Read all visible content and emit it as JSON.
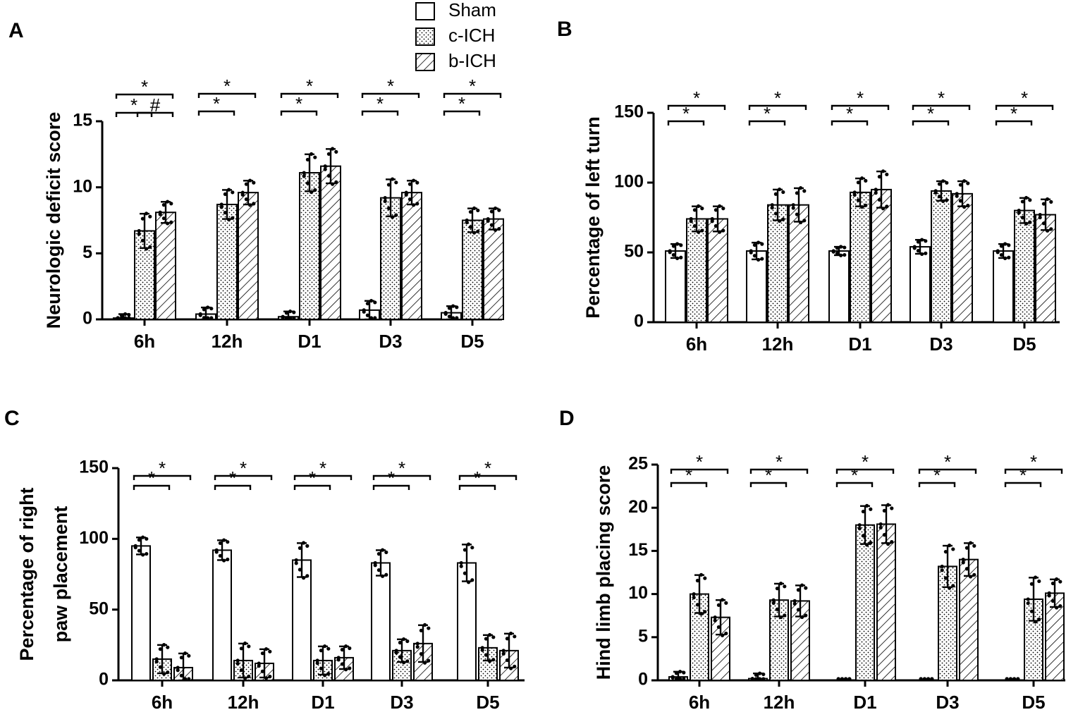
{
  "legend": [
    {
      "name": "Sham",
      "pattern": "white"
    },
    {
      "name": "c-ICH",
      "pattern": "dots"
    },
    {
      "name": "b-ICH",
      "pattern": "hatch"
    }
  ],
  "chart_data": [
    {
      "type": "bar",
      "panel": "A",
      "ylabel": "Neurologic deficit score",
      "ylabel_lines": [
        "Neurologic deficit score"
      ],
      "ylim": [
        0,
        15
      ],
      "yticks": [
        0,
        5,
        10,
        15
      ],
      "ytick_labels": [
        "0",
        "5",
        "10",
        "15"
      ],
      "categories": [
        "6h",
        "12h",
        "D1",
        "D3",
        "D5"
      ],
      "series": [
        {
          "name": "Sham",
          "values": [
            0.1,
            0.4,
            0.2,
            0.7,
            0.5
          ],
          "errors": [
            0.3,
            0.5,
            0.4,
            0.7,
            0.5
          ]
        },
        {
          "name": "c-ICH",
          "values": [
            6.7,
            8.7,
            11.1,
            9.2,
            7.5
          ],
          "errors": [
            1.3,
            1.1,
            1.4,
            1.4,
            0.9
          ]
        },
        {
          "name": "b-ICH",
          "values": [
            8.1,
            9.6,
            11.6,
            9.6,
            7.6
          ],
          "errors": [
            0.8,
            0.9,
            1.3,
            0.9,
            0.8
          ]
        }
      ],
      "significance": [
        {
          "category": 0,
          "from": 0,
          "to": 1,
          "label": "*"
        },
        {
          "category": 0,
          "from": 1,
          "to": 2,
          "label": "#"
        },
        {
          "category": 0,
          "from": 0,
          "to": 2,
          "label": "*"
        },
        {
          "category": 1,
          "from": 0,
          "to": 1,
          "label": "*"
        },
        {
          "category": 1,
          "from": 0,
          "to": 2,
          "label": "*"
        },
        {
          "category": 2,
          "from": 0,
          "to": 1,
          "label": "*"
        },
        {
          "category": 2,
          "from": 0,
          "to": 2,
          "label": "*"
        },
        {
          "category": 3,
          "from": 0,
          "to": 1,
          "label": "*"
        },
        {
          "category": 3,
          "from": 0,
          "to": 2,
          "label": "*"
        },
        {
          "category": 4,
          "from": 0,
          "to": 1,
          "label": "*"
        },
        {
          "category": 4,
          "from": 0,
          "to": 2,
          "label": "*"
        }
      ]
    },
    {
      "type": "bar",
      "panel": "B",
      "ylabel": "Percentage of left turn",
      "ylabel_lines": [
        "Percentage of left turn"
      ],
      "ylim": [
        0,
        150
      ],
      "yticks": [
        0,
        50,
        100,
        150
      ],
      "ytick_labels": [
        "0",
        "50",
        "100",
        "150"
      ],
      "categories": [
        "6h",
        "12h",
        "D1",
        "D3",
        "D5"
      ],
      "series": [
        {
          "name": "Sham",
          "values": [
            51,
            51,
            51,
            54,
            51
          ],
          "errors": [
            5,
            6,
            3,
            5,
            5
          ]
        },
        {
          "name": "c-ICH",
          "values": [
            74,
            84,
            93,
            94,
            80
          ],
          "errors": [
            9,
            11,
            10,
            7,
            9
          ]
        },
        {
          "name": "b-ICH",
          "values": [
            74,
            84,
            95,
            92,
            77
          ],
          "errors": [
            9,
            12,
            13,
            9,
            11
          ]
        }
      ],
      "significance": [
        {
          "category": 0,
          "from": 0,
          "to": 1,
          "label": "*"
        },
        {
          "category": 0,
          "from": 0,
          "to": 2,
          "label": "*"
        },
        {
          "category": 1,
          "from": 0,
          "to": 1,
          "label": "*"
        },
        {
          "category": 1,
          "from": 0,
          "to": 2,
          "label": "*"
        },
        {
          "category": 2,
          "from": 0,
          "to": 1,
          "label": "*"
        },
        {
          "category": 2,
          "from": 0,
          "to": 2,
          "label": "*"
        },
        {
          "category": 3,
          "from": 0,
          "to": 1,
          "label": "*"
        },
        {
          "category": 3,
          "from": 0,
          "to": 2,
          "label": "*"
        },
        {
          "category": 4,
          "from": 0,
          "to": 1,
          "label": "*"
        },
        {
          "category": 4,
          "from": 0,
          "to": 2,
          "label": "*"
        }
      ]
    },
    {
      "type": "bar",
      "panel": "C",
      "ylabel": "Percentage of right paw placement",
      "ylabel_lines": [
        "Percentage of right",
        "paw placement"
      ],
      "ylim": [
        0,
        150
      ],
      "yticks": [
        0,
        50,
        100,
        150
      ],
      "ytick_labels": [
        "0",
        "50",
        "100",
        "150"
      ],
      "categories": [
        "6h",
        "12h",
        "D1",
        "D3",
        "D5"
      ],
      "series": [
        {
          "name": "Sham",
          "values": [
            95,
            92,
            85,
            83,
            83
          ],
          "errors": [
            6,
            7,
            12,
            9,
            13
          ]
        },
        {
          "name": "c-ICH",
          "values": [
            15,
            14,
            14,
            21,
            23
          ],
          "errors": [
            10,
            12,
            10,
            8,
            9
          ]
        },
        {
          "name": "b-ICH",
          "values": [
            9,
            12,
            16,
            26,
            21
          ],
          "errors": [
            10,
            10,
            8,
            13,
            12
          ]
        }
      ],
      "significance": [
        {
          "category": 0,
          "from": 0,
          "to": 1,
          "label": "*"
        },
        {
          "category": 0,
          "from": 0,
          "to": 2,
          "label": "*"
        },
        {
          "category": 1,
          "from": 0,
          "to": 1,
          "label": "*"
        },
        {
          "category": 1,
          "from": 0,
          "to": 2,
          "label": "*"
        },
        {
          "category": 2,
          "from": 0,
          "to": 1,
          "label": "*"
        },
        {
          "category": 2,
          "from": 0,
          "to": 2,
          "label": "*"
        },
        {
          "category": 3,
          "from": 0,
          "to": 1,
          "label": "*"
        },
        {
          "category": 3,
          "from": 0,
          "to": 2,
          "label": "*"
        },
        {
          "category": 4,
          "from": 0,
          "to": 1,
          "label": "*"
        },
        {
          "category": 4,
          "from": 0,
          "to": 2,
          "label": "*"
        }
      ]
    },
    {
      "type": "bar",
      "panel": "D",
      "ylabel": "Hind limb placing score",
      "ylabel_lines": [
        "Hind limb placing score"
      ],
      "ylim": [
        0,
        25
      ],
      "yticks": [
        0,
        5,
        10,
        15,
        20,
        25
      ],
      "ytick_labels": [
        "0",
        "5",
        "10",
        "15",
        "20",
        "25"
      ],
      "categories": [
        "6h",
        "12h",
        "D1",
        "D3",
        "D5"
      ],
      "series": [
        {
          "name": "Sham",
          "values": [
            0.4,
            0.2,
            0,
            0,
            0
          ],
          "errors": [
            0.6,
            0.6,
            0,
            0,
            0
          ]
        },
        {
          "name": "c-ICH",
          "values": [
            10,
            9.3,
            18,
            13.2,
            9.4
          ],
          "errors": [
            2.2,
            1.9,
            2.2,
            2.4,
            2.5
          ]
        },
        {
          "name": "b-ICH",
          "values": [
            7.3,
            9.2,
            18.1,
            14,
            10.1
          ],
          "errors": [
            2,
            1.8,
            2.2,
            1.9,
            1.6
          ]
        }
      ],
      "significance": [
        {
          "category": 0,
          "from": 0,
          "to": 1,
          "label": "*"
        },
        {
          "category": 0,
          "from": 0,
          "to": 2,
          "label": "*"
        },
        {
          "category": 1,
          "from": 0,
          "to": 1,
          "label": "*"
        },
        {
          "category": 1,
          "from": 0,
          "to": 2,
          "label": "*"
        },
        {
          "category": 2,
          "from": 0,
          "to": 1,
          "label": "*"
        },
        {
          "category": 2,
          "from": 0,
          "to": 2,
          "label": "*"
        },
        {
          "category": 3,
          "from": 0,
          "to": 1,
          "label": "*"
        },
        {
          "category": 3,
          "from": 0,
          "to": 2,
          "label": "*"
        },
        {
          "category": 4,
          "from": 0,
          "to": 1,
          "label": "*"
        },
        {
          "category": 4,
          "from": 0,
          "to": 2,
          "label": "*"
        }
      ]
    }
  ]
}
